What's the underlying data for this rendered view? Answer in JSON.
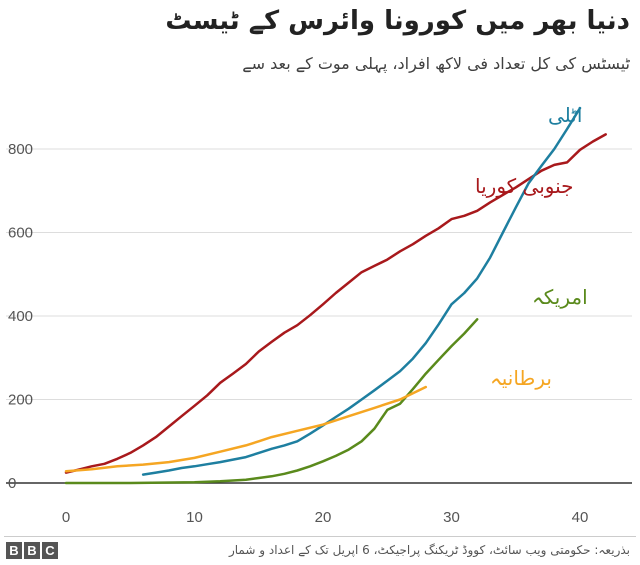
{
  "title": "دنیا بھر میں کورونا وائرس کے ٹیسٹ",
  "subtitle": "ٹیسٹس کی کل تعداد فی لاکھ افراد، پہلی موت کے بعد سے",
  "source": "بذریعہ: حکومتی ویب سائٹ، کووڈ ٹریکنگ پراجیکٹ، 6 اپریل تک کے اعداد و شمار",
  "logo": [
    "B",
    "B",
    "C"
  ],
  "chart_data": {
    "type": "line",
    "xlim": [
      0,
      44
    ],
    "ylim": [
      0,
      920
    ],
    "xticks": [
      0,
      10,
      20,
      30,
      40
    ],
    "yticks": [
      0,
      200,
      400,
      600,
      800
    ],
    "grid": true,
    "series": [
      {
        "name": "جنوبی کوریا",
        "color": "#a8191c",
        "x": [
          0,
          1,
          2,
          3,
          4,
          5,
          6,
          7,
          8,
          9,
          10,
          11,
          12,
          13,
          14,
          15,
          16,
          17,
          18,
          19,
          20,
          21,
          22,
          23,
          24,
          25,
          26,
          27,
          28,
          29,
          30,
          31,
          32,
          33,
          34,
          35,
          36,
          37,
          38,
          39,
          40,
          41,
          42
        ],
        "y": [
          25,
          32,
          40,
          46,
          58,
          72,
          90,
          110,
          135,
          160,
          185,
          210,
          240,
          262,
          285,
          315,
          338,
          360,
          378,
          402,
          428,
          455,
          480,
          505,
          520,
          535,
          555,
          572,
          592,
          610,
          632,
          640,
          652,
          672,
          690,
          708,
          728,
          748,
          762,
          768,
          798,
          818,
          835
        ]
      },
      {
        "name": "اٹلی",
        "color": "#1e7fa0",
        "x": [
          6,
          7,
          8,
          9,
          10,
          11,
          12,
          13,
          14,
          15,
          16,
          17,
          18,
          19,
          20,
          21,
          22,
          23,
          24,
          25,
          26,
          27,
          28,
          29,
          30,
          31,
          32,
          33,
          34,
          35,
          36,
          37,
          38,
          39,
          40
        ],
        "y": [
          20,
          25,
          30,
          36,
          40,
          45,
          50,
          56,
          62,
          72,
          82,
          90,
          100,
          118,
          138,
          158,
          178,
          200,
          222,
          245,
          268,
          298,
          335,
          380,
          428,
          455,
          490,
          540,
          600,
          660,
          718,
          760,
          800,
          848,
          898
        ]
      },
      {
        "name": "امریکہ",
        "color": "#5a8a1c",
        "x": [
          0,
          5,
          10,
          12,
          14,
          15,
          16,
          17,
          18,
          19,
          20,
          21,
          22,
          23,
          24,
          25,
          26,
          27,
          28,
          29,
          30,
          31,
          32
        ],
        "y": [
          0,
          0,
          2,
          4,
          8,
          12,
          16,
          22,
          30,
          40,
          52,
          65,
          80,
          100,
          130,
          175,
          190,
          225,
          262,
          295,
          328,
          358,
          392
        ]
      },
      {
        "name": "برطانیہ",
        "color": "#f5a623",
        "x": [
          0,
          2,
          4,
          6,
          8,
          10,
          12,
          14,
          15,
          16,
          18,
          20,
          22,
          24,
          26,
          28
        ],
        "y": [
          28,
          33,
          40,
          44,
          50,
          60,
          75,
          90,
          100,
          110,
          125,
          140,
          160,
          180,
          200,
          230
        ]
      }
    ]
  }
}
